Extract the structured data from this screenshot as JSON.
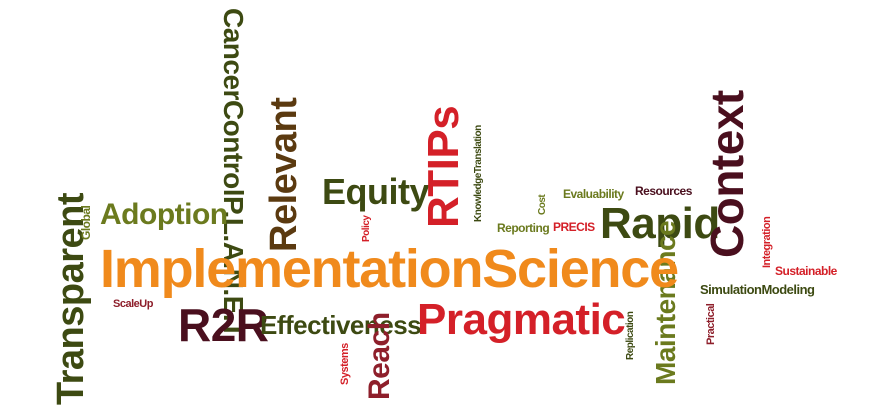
{
  "words": {
    "implementation_science": "ImplementationScience",
    "pragmatic": "Pragmatic",
    "transparent": "Transparent",
    "r2r": "R2R",
    "effectiveness": "Effectiveness",
    "equity": "Equity",
    "rtips": "RTIPs",
    "relevant": "Relevant",
    "cancer_control_planet": "CancerControlP.L.A.N.E.T",
    "adoption": "Adoption",
    "global": "Global",
    "scaleup": "ScaleUp",
    "policy": "Policy",
    "knowledge_translation": "KnowledgeTranslation",
    "cost": "Cost",
    "reporting": "Reporting",
    "precis": "PRECIS",
    "evaluability": "Evaluability",
    "resources": "Resources",
    "context": "Context",
    "rapid": "Rapid",
    "integration": "Integration",
    "sustainable": "Sustainable",
    "simulation_modeling": "SimulationModeling",
    "maintenance": "Maintenance",
    "replication": "Replication",
    "practical": "Practical",
    "systems": "Systems",
    "reach": "Reach"
  },
  "colors": {
    "orange": "#f08a1c",
    "dark_olive": "#3d4a12",
    "olive": "#6b7a1e",
    "maroon": "#4a0f1e",
    "red": "#d42028",
    "dark_red": "#8e1f2b",
    "brown": "#5b3a10",
    "light_olive": "#7d8a2a"
  }
}
